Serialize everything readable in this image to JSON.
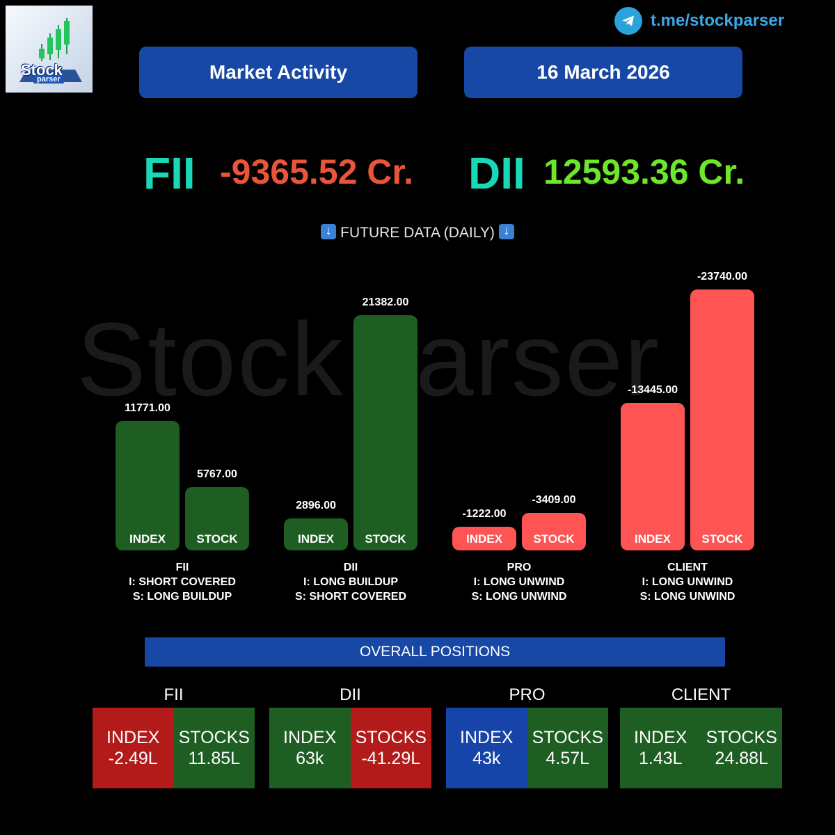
{
  "header": {
    "telegram_link": "t.me/stockparser",
    "title": "Market Activity",
    "date": "16 March 2026"
  },
  "logo": {
    "word": "Stock",
    "sub": "parser"
  },
  "watermark": "StockParser",
  "net_flows": {
    "fii": {
      "label": "FII",
      "value": "-9365.52 Cr."
    },
    "dii": {
      "label": "DII",
      "value": "12593.36 Cr."
    }
  },
  "future_section": {
    "title": "FUTURE DATA (DAILY)"
  },
  "colors": {
    "positive": "#1e5e22",
    "negative": "#ff5454",
    "index_neutral": "#1744a8",
    "panel": "#1848a5"
  },
  "chart_data": {
    "type": "bar",
    "title": "FUTURE DATA (DAILY)",
    "groups": [
      {
        "name": "FII",
        "index_label": "I: SHORT COVERED",
        "stock_label": "S: LONG BUILDUP"
      },
      {
        "name": "DII",
        "index_label": "I: LONG BUILDUP",
        "stock_label": "S: SHORT COVERED"
      },
      {
        "name": "PRO",
        "index_label": "I: LONG UNWIND",
        "stock_label": "S: LONG UNWIND"
      },
      {
        "name": "CLIENT",
        "index_label": "I: LONG UNWIND",
        "stock_label": "S: LONG UNWIND"
      }
    ],
    "categories": [
      "INDEX",
      "STOCK"
    ],
    "series": [
      {
        "group": "FII",
        "values": [
          11771.0,
          5767.0
        ],
        "value_labels": [
          "11771.00",
          "5767.00"
        ]
      },
      {
        "group": "DII",
        "values": [
          2896.0,
          21382.0
        ],
        "value_labels": [
          "2896.00",
          "21382.00"
        ]
      },
      {
        "group": "PRO",
        "values": [
          -1222.0,
          -3409.0
        ],
        "value_labels": [
          "-1222.00",
          "-3409.00"
        ]
      },
      {
        "group": "CLIENT",
        "values": [
          -13445.0,
          -23740.0
        ],
        "value_labels": [
          "-13445.00",
          "-23740.00"
        ]
      }
    ],
    "scale": "bar height proportional to absolute value; green = positive, red = negative"
  },
  "overall": {
    "title": "OVERALL POSITIONS",
    "groups": [
      {
        "name": "FII",
        "cells": [
          {
            "label": "INDEX",
            "value": "-2.49L",
            "color": "#b31b1b"
          },
          {
            "label": "STOCKS",
            "value": "11.85L",
            "color": "#1e5e22"
          }
        ]
      },
      {
        "name": "DII",
        "cells": [
          {
            "label": "INDEX",
            "value": "63k",
            "color": "#1e5e22"
          },
          {
            "label": "STOCKS",
            "value": "-41.29L",
            "color": "#b31b1b"
          }
        ]
      },
      {
        "name": "PRO",
        "cells": [
          {
            "label": "INDEX",
            "value": "43k",
            "color": "#1744a8"
          },
          {
            "label": "STOCKS",
            "value": "4.57L",
            "color": "#1e5e22"
          }
        ]
      },
      {
        "name": "CLIENT",
        "cells": [
          {
            "label": "INDEX",
            "value": "1.43L",
            "color": "#1e5e22"
          },
          {
            "label": "STOCKS",
            "value": "24.88L",
            "color": "#1e5e22"
          }
        ]
      }
    ]
  }
}
